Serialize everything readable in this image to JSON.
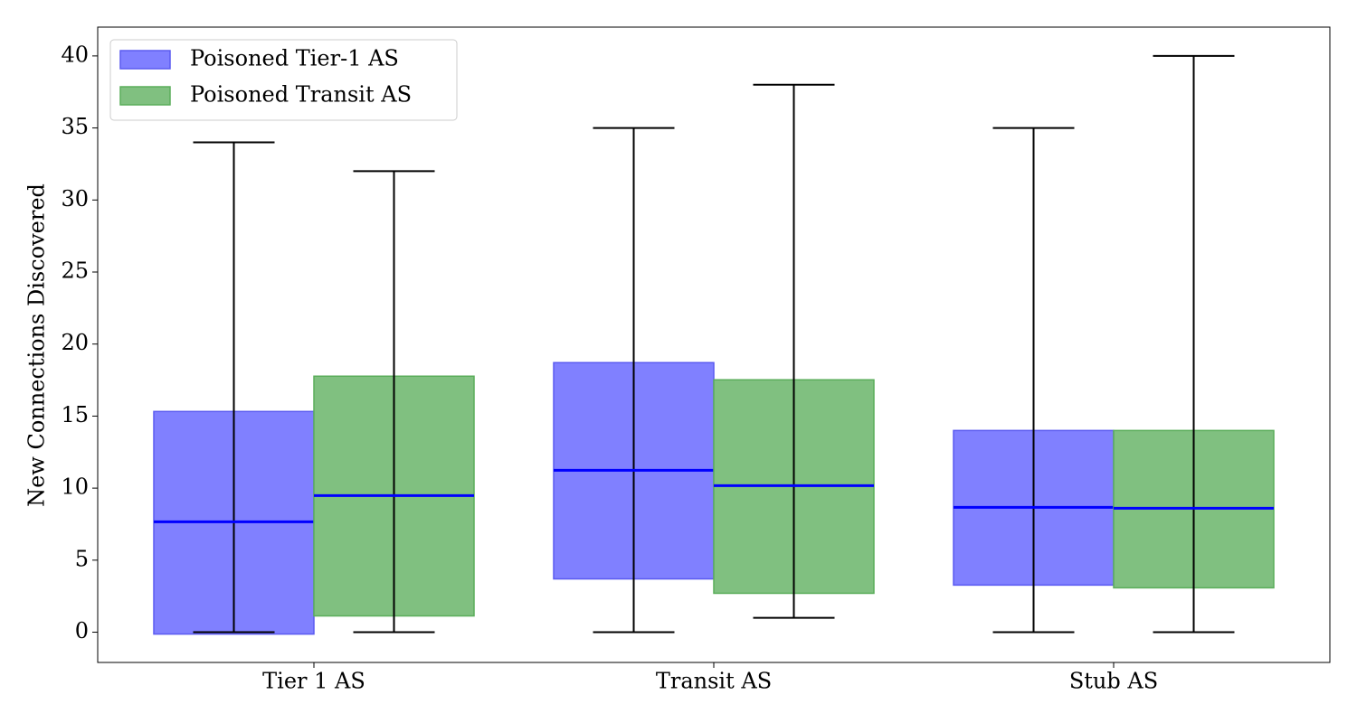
{
  "chart_data": {
    "type": "box",
    "y_label": "New Connections Discovered",
    "categories": [
      "Tier 1 AS",
      "Transit AS",
      "Stub AS"
    ],
    "ylim": [
      -2.1,
      42.0
    ],
    "yticks": [
      0,
      5,
      10,
      15,
      20,
      25,
      30,
      35,
      40
    ],
    "legend": "upper left",
    "median_color": "#0000ff",
    "series": [
      {
        "name": "Poisoned Tier-1 AS",
        "color": "#8080ff",
        "edge_color": "#5a5af0",
        "lows": [
          0,
          0,
          0
        ],
        "q1": [
          -0.13,
          3.7,
          3.27
        ],
        "medians": [
          7.66,
          11.24,
          8.67
        ],
        "q3": [
          15.32,
          18.71,
          14.0
        ],
        "highs": [
          34,
          35,
          35
        ]
      },
      {
        "name": "Poisoned Transit AS",
        "color": "#80c080",
        "edge_color": "#5aad5a",
        "lows": [
          0,
          1,
          0
        ],
        "q1": [
          1.13,
          2.7,
          3.08
        ],
        "medians": [
          9.48,
          10.17,
          8.6
        ],
        "q3": [
          17.77,
          17.52,
          14.0
        ],
        "highs": [
          32,
          38,
          40
        ]
      }
    ]
  }
}
